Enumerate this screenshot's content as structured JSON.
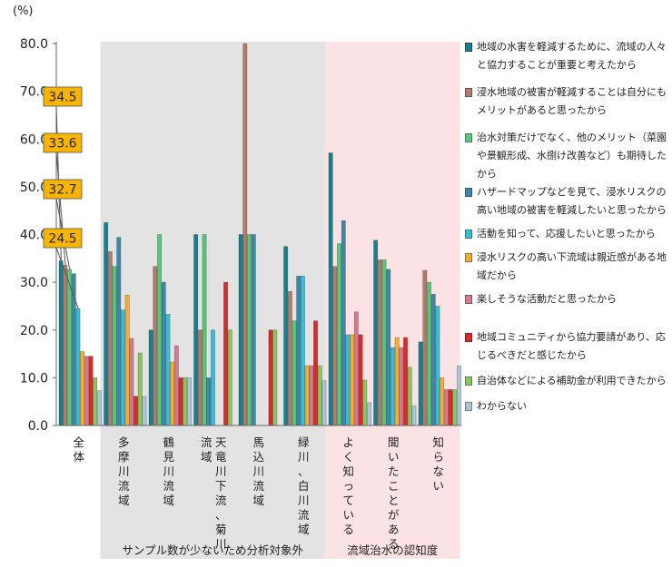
{
  "chart_data": {
    "type": "bar",
    "unit": "(%)",
    "ylim": [
      0,
      80
    ],
    "yticks": [
      "0.0",
      "10.0",
      "20.0",
      "30.0",
      "40.0",
      "50.0",
      "60.0",
      "70.0",
      "80.0"
    ],
    "categories": [
      {
        "label": "全体"
      },
      {
        "label": "多摩川流域"
      },
      {
        "label": "鶴見川流域"
      },
      {
        "label": "天竜川下流、菊川流域"
      },
      {
        "label": "馬込川流域"
      },
      {
        "label": "緑川、白川流域"
      },
      {
        "label": "よく知っている"
      },
      {
        "label": "聞いたことがある"
      },
      {
        "label": "知らない"
      }
    ],
    "groups": [
      {
        "label": "サンプル数が少ないため分析対象外",
        "color": "#e3e3e3"
      },
      {
        "label": "流域治水の認知度",
        "color": "#fbe2e4"
      }
    ],
    "series": [
      {
        "name": "地域の水害を軽減するために、流域の人々と協力することが重要と考えたから",
        "color": "#17808e",
        "values": [
          34.5,
          42.5,
          20.0,
          40.0,
          40.0,
          37.5,
          57.1,
          38.8,
          17.5
        ]
      },
      {
        "name": "浸水地域の被害が軽減することは自分にもメリットがあると思ったから",
        "color": "#b07a6c",
        "values": [
          33.6,
          36.4,
          33.3,
          20.0,
          80.0,
          28.1,
          33.3,
          34.7,
          32.5
        ]
      },
      {
        "name": "治水対策だけでなく、他のメリット（菜園や景観形成、水捌け改善など）も期待したから",
        "color": "#58c77a",
        "values": [
          32.7,
          33.3,
          40.0,
          40.0,
          40.0,
          21.9,
          38.1,
          34.7,
          30.0
        ]
      },
      {
        "name": "ハザードマップなどを見て、浸水リスクの高い地域の被害を軽減したいと思ったから",
        "color": "#3e87a8",
        "values": [
          31.8,
          39.4,
          30.0,
          10.0,
          40.0,
          31.3,
          42.9,
          32.7,
          27.5
        ]
      },
      {
        "name": "活動を知って、応援したいと思ったから",
        "color": "#36bfd6",
        "values": [
          24.5,
          24.2,
          23.3,
          20.0,
          0,
          31.3,
          19.0,
          16.3,
          25.0
        ]
      },
      {
        "name": "浸水リスクの高い下流域は親近感がある地域だから",
        "color": "#f5ad2f",
        "values": [
          15.5,
          27.3,
          13.3,
          0,
          0,
          12.5,
          19.0,
          18.4,
          10.0
        ]
      },
      {
        "name": "楽しそうな活動だと思ったから",
        "color": "#d47a8e",
        "values": [
          14.5,
          18.2,
          16.7,
          0,
          0,
          12.5,
          23.8,
          16.3,
          7.5
        ]
      },
      {
        "name": "地域コミュニティから協力要請があり、応じるべきだと感じたから",
        "color": "#dc2a2a",
        "values": [
          14.5,
          6.1,
          10.0,
          30.0,
          20.0,
          21.9,
          19.0,
          18.4,
          7.5
        ]
      },
      {
        "name": "自治体などによる補助金が利用できたから",
        "color": "#8dc65e",
        "values": [
          10.0,
          15.2,
          10.0,
          20.0,
          20.0,
          12.5,
          9.5,
          12.2,
          7.5
        ]
      },
      {
        "name": "わからない",
        "color": "#aac6d8",
        "values": [
          7.3,
          6.1,
          10.0,
          0,
          0,
          9.4,
          4.8,
          4.1,
          12.5
        ]
      }
    ],
    "annotations": [
      {
        "text": "34.5",
        "series": 0,
        "category": 0
      },
      {
        "text": "33.6",
        "series": 1,
        "category": 0
      },
      {
        "text": "32.7",
        "series": 2,
        "category": 0
      },
      {
        "text": "24.5",
        "series": 4,
        "category": 0
      }
    ],
    "annotation_color": "#f7b500",
    "legend_position": "right",
    "grid": false
  }
}
